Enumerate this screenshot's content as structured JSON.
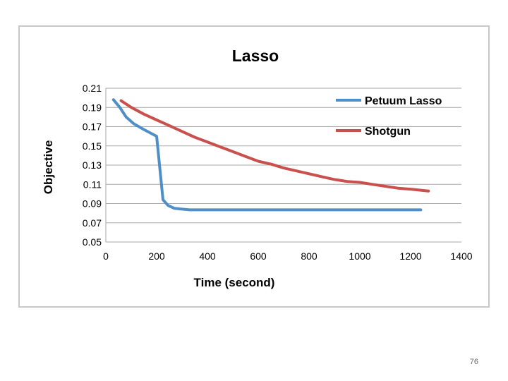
{
  "slide": {
    "page_number": "76"
  },
  "chart_data": {
    "type": "line",
    "title": "Lasso",
    "xlabel": "Time (second)",
    "ylabel": "Objective",
    "xlim": [
      0,
      1400
    ],
    "ylim": [
      0.05,
      0.21
    ],
    "x_ticks": [
      "0",
      "200",
      "400",
      "600",
      "800",
      "1000",
      "1200",
      "1400"
    ],
    "y_ticks": [
      "0.21",
      "0.19",
      "0.17",
      "0.15",
      "0.13",
      "0.11",
      "0.09",
      "0.07",
      "0.05"
    ],
    "grid": true,
    "legend_position": "top-right",
    "series": [
      {
        "name": "Petuum Lasso",
        "color": "#4f8fc8",
        "x": [
          30,
          55,
          80,
          110,
          150,
          200,
          225,
          245,
          270,
          330,
          500,
          800,
          1000,
          1240
        ],
        "y": [
          0.198,
          0.19,
          0.18,
          0.173,
          0.167,
          0.16,
          0.094,
          0.088,
          0.085,
          0.0835,
          0.0835,
          0.0835,
          0.0835,
          0.0835
        ]
      },
      {
        "name": "Shotgun",
        "color": "#c9504c",
        "x": [
          60,
          100,
          150,
          200,
          250,
          300,
          350,
          400,
          450,
          500,
          550,
          600,
          650,
          700,
          750,
          800,
          850,
          900,
          950,
          1000,
          1050,
          1100,
          1150,
          1200,
          1270
        ],
        "y": [
          0.197,
          0.19,
          0.183,
          0.177,
          0.171,
          0.165,
          0.159,
          0.154,
          0.149,
          0.144,
          0.139,
          0.134,
          0.131,
          0.127,
          0.124,
          0.121,
          0.118,
          0.115,
          0.113,
          0.112,
          0.11,
          0.108,
          0.106,
          0.105,
          0.103
        ]
      }
    ]
  }
}
